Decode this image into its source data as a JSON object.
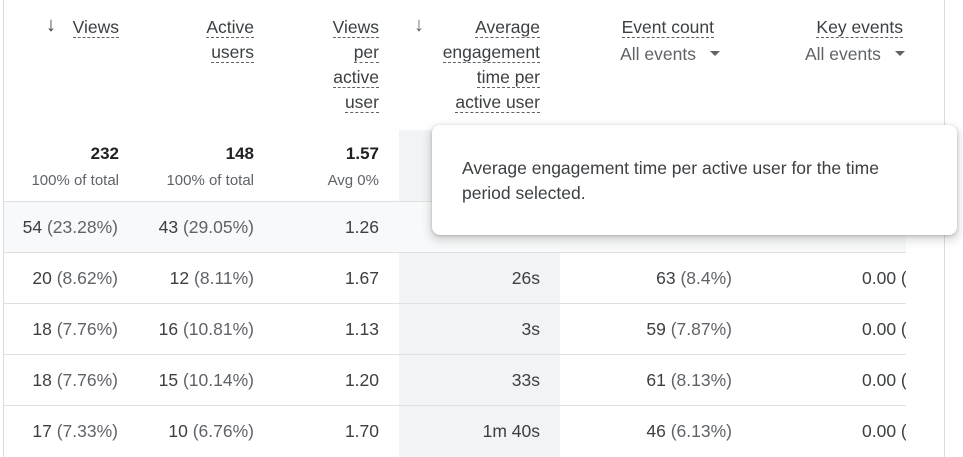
{
  "headers": {
    "views": "Views",
    "active_users_l1": "Active",
    "active_users_l2": "users",
    "vpau_l1": "Views",
    "vpau_l2": "per",
    "vpau_l3": "active",
    "vpau_l4": "user",
    "aet_l1": "Average",
    "aet_l2": "engagement",
    "aet_l3": "time per",
    "aet_l4": "active user",
    "event_count": "Event count",
    "event_count_filter": "All events",
    "key_events": "Key events",
    "key_events_filter": "All events"
  },
  "sort_arrow": "↓",
  "totals": {
    "views": "232",
    "views_pct": "100% of total",
    "active_users": "148",
    "active_users_pct": "100% of total",
    "vpau": "1.57",
    "vpau_pct": "Avg 0%"
  },
  "tooltip": {
    "text": "Average engagement time per active user for the time period selected."
  },
  "rows": [
    {
      "views": "54",
      "views_p": "(23.28%)",
      "users": "43",
      "users_p": "(29.05%)",
      "vpau": "1.26",
      "aet": "",
      "events": "",
      "events_p": "",
      "key": ""
    },
    {
      "views": "20",
      "views_p": "(8.62%)",
      "users": "12",
      "users_p": "(8.11%)",
      "vpau": "1.67",
      "aet": "26s",
      "events": "63",
      "events_p": "(8.4%)",
      "key": "0.00 ("
    },
    {
      "views": "18",
      "views_p": "(7.76%)",
      "users": "16",
      "users_p": "(10.81%)",
      "vpau": "1.13",
      "aet": "3s",
      "events": "59",
      "events_p": "(7.87%)",
      "key": "0.00 ("
    },
    {
      "views": "18",
      "views_p": "(7.76%)",
      "users": "15",
      "users_p": "(10.14%)",
      "vpau": "1.20",
      "aet": "33s",
      "events": "61",
      "events_p": "(8.13%)",
      "key": "0.00 ("
    },
    {
      "views": "17",
      "views_p": "(7.33%)",
      "users": "10",
      "users_p": "(6.76%)",
      "vpau": "1.70",
      "aet": "1m 40s",
      "events": "46",
      "events_p": "(6.13%)",
      "key": "0.00 ("
    }
  ]
}
